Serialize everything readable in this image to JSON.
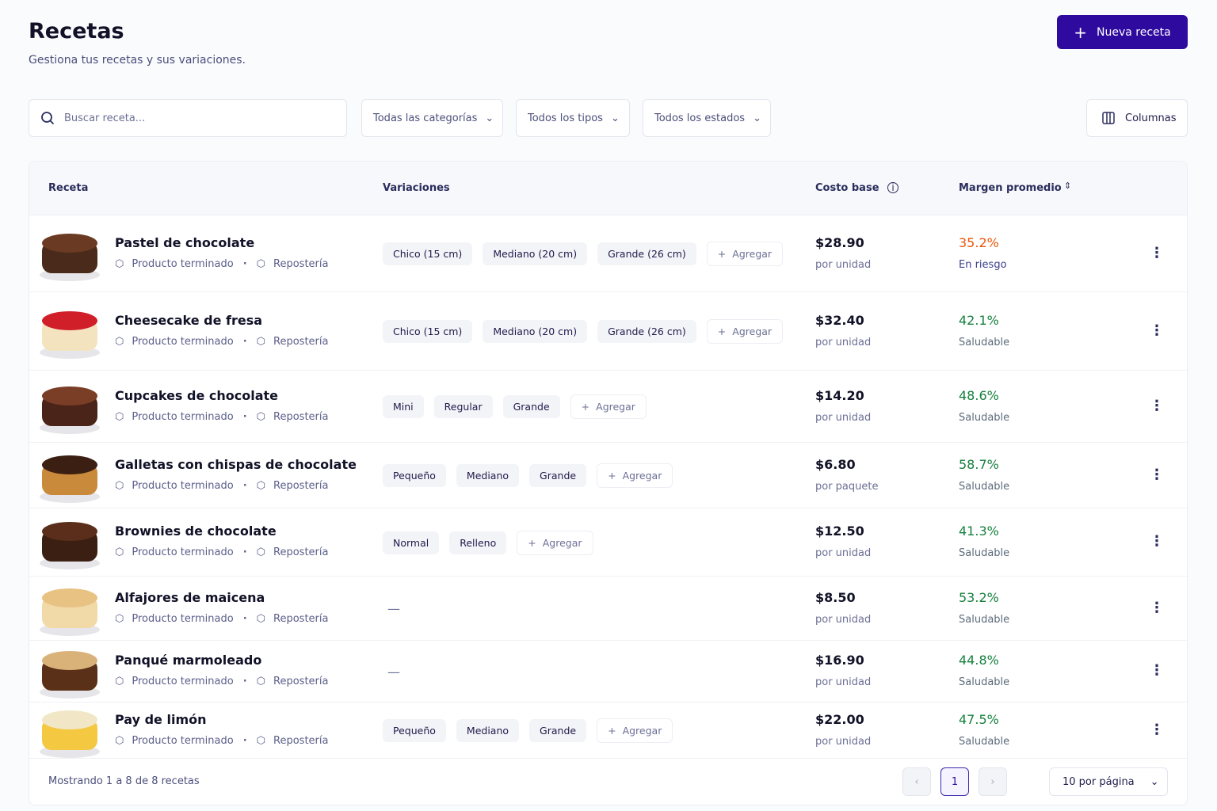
{
  "header": {
    "title": "Recetas",
    "subtitle": "Gestiona tus recetas y sus variaciones.",
    "new_button": "Nueva receta"
  },
  "filters": {
    "search_placeholder": "Buscar receta...",
    "category": "Todas las categorías",
    "type": "Todos los tipos",
    "status": "Todos los estados",
    "columns": "Columnas"
  },
  "table": {
    "columns": [
      "Receta",
      "Variaciones",
      "Costo base",
      "Margen promedio"
    ],
    "add_label": "Agregar",
    "empty_variations": "—",
    "rows": [
      {
        "name": "Pastel de chocolate",
        "type": "Producto terminado",
        "category": "Repostería",
        "variations": [
          "Chico (15 cm)",
          "Mediano (20 cm)",
          "Grande (26 cm)"
        ],
        "cost": "$28.90",
        "unit": "por unidad",
        "margin": "35.2%",
        "status": "En riesgo",
        "margin_color": "#ea580c"
      },
      {
        "name": "Cheesecake de fresa",
        "type": "Producto terminado",
        "category": "Repostería",
        "variations": [
          "Chico (15 cm)",
          "Mediano (20 cm)",
          "Grande (26 cm)"
        ],
        "cost": "$32.40",
        "unit": "por unidad",
        "margin": "42.1%",
        "status": "Saludable",
        "margin_color": "#15803d"
      },
      {
        "name": "Cupcakes de chocolate",
        "type": "Producto terminado",
        "category": "Repostería",
        "variations": [
          "Mini",
          "Regular",
          "Grande"
        ],
        "cost": "$14.20",
        "unit": "por unidad",
        "margin": "48.6%",
        "status": "Saludable",
        "margin_color": "#15803d"
      },
      {
        "name": "Galletas con chispas de chocolate",
        "type": "Producto terminado",
        "category": "Repostería",
        "variations": [
          "Pequeño",
          "Mediano",
          "Grande"
        ],
        "cost": "$6.80",
        "unit": "por paquete",
        "margin": "58.7%",
        "status": "Saludable",
        "margin_color": "#15803d"
      },
      {
        "name": "Brownies de chocolate",
        "type": "Producto terminado",
        "category": "Repostería",
        "variations": [
          "Normal",
          "Relleno"
        ],
        "cost": "$12.50",
        "unit": "por unidad",
        "margin": "41.3%",
        "status": "Saludable",
        "margin_color": "#15803d"
      },
      {
        "name": "Alfajores de maicena",
        "type": "Producto terminado",
        "category": "Repostería",
        "variations": [],
        "cost": "$8.50",
        "unit": "por unidad",
        "margin": "53.2%",
        "status": "Saludable",
        "margin_color": "#15803d"
      },
      {
        "name": "Panqué marmoleado",
        "type": "Producto terminado",
        "category": "Repostería",
        "variations": [],
        "cost": "$16.90",
        "unit": "por unidad",
        "margin": "44.8%",
        "status": "Saludable",
        "margin_color": "#15803d"
      },
      {
        "name": "Pay de limón",
        "type": "Producto terminado",
        "category": "Repostería",
        "variations": [
          "Pequeño",
          "Mediano",
          "Grande"
        ],
        "cost": "$22.00",
        "unit": "por unidad",
        "margin": "47.5%",
        "status": "Saludable",
        "margin_color": "#15803d"
      }
    ]
  },
  "footer": {
    "summary": "Mostrando 1 a 8 de 8 recetas",
    "page": "1",
    "per_page": "10 por página"
  }
}
